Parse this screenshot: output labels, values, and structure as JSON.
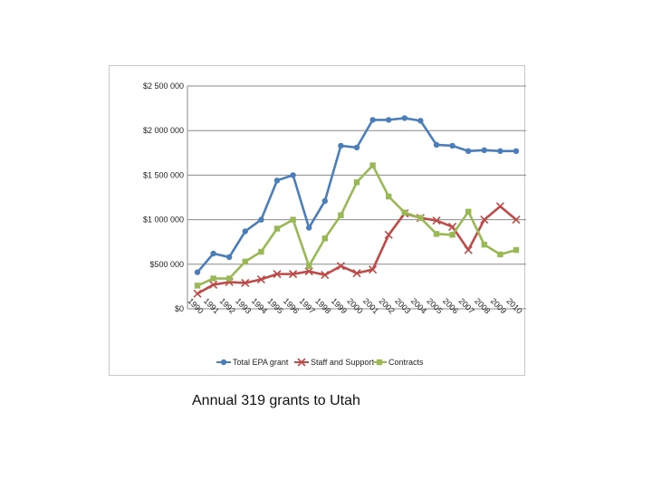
{
  "caption": "Annual 319 grants to Utah",
  "chart_data": {
    "type": "line",
    "title": "",
    "xlabel": "",
    "ylabel": "",
    "ylim": [
      0,
      2500000
    ],
    "yticks": [
      0,
      500000,
      1000000,
      1500000,
      2000000,
      2500000
    ],
    "ytick_labels": [
      "$0",
      "$500 000",
      "$1 000 000",
      "$1 500 000",
      "$2 000 000",
      "$2 500 000"
    ],
    "categories": [
      "1990",
      "1991",
      "1992",
      "1993",
      "1994",
      "1995",
      "1996",
      "1997",
      "1998",
      "1999",
      "2000",
      "2001",
      "2002",
      "2003",
      "2004",
      "2005",
      "2006",
      "2007",
      "2008",
      "2009",
      "2010"
    ],
    "grid": "horizontal",
    "legend_position": "bottom",
    "series": [
      {
        "name": "Total EPA grant",
        "color": "#4a7ebb",
        "marker": "circle",
        "values": [
          410000,
          620000,
          580000,
          870000,
          1000000,
          1440000,
          1500000,
          910000,
          1210000,
          1830000,
          1810000,
          2120000,
          2120000,
          2140000,
          2110000,
          1840000,
          1830000,
          1770000,
          1780000,
          1770000,
          1770000
        ]
      },
      {
        "name": "Staff and Support",
        "color": "#be4b48",
        "marker": "x",
        "values": [
          170000,
          270000,
          300000,
          290000,
          330000,
          390000,
          390000,
          420000,
          380000,
          480000,
          400000,
          440000,
          830000,
          1070000,
          1020000,
          990000,
          920000,
          660000,
          1000000,
          1150000,
          1000000
        ]
      },
      {
        "name": "Contracts",
        "color": "#98b954",
        "marker": "square",
        "values": [
          260000,
          340000,
          340000,
          530000,
          640000,
          900000,
          1000000,
          480000,
          790000,
          1050000,
          1420000,
          1610000,
          1260000,
          1080000,
          1020000,
          840000,
          830000,
          1090000,
          720000,
          610000,
          660000
        ]
      }
    ]
  }
}
